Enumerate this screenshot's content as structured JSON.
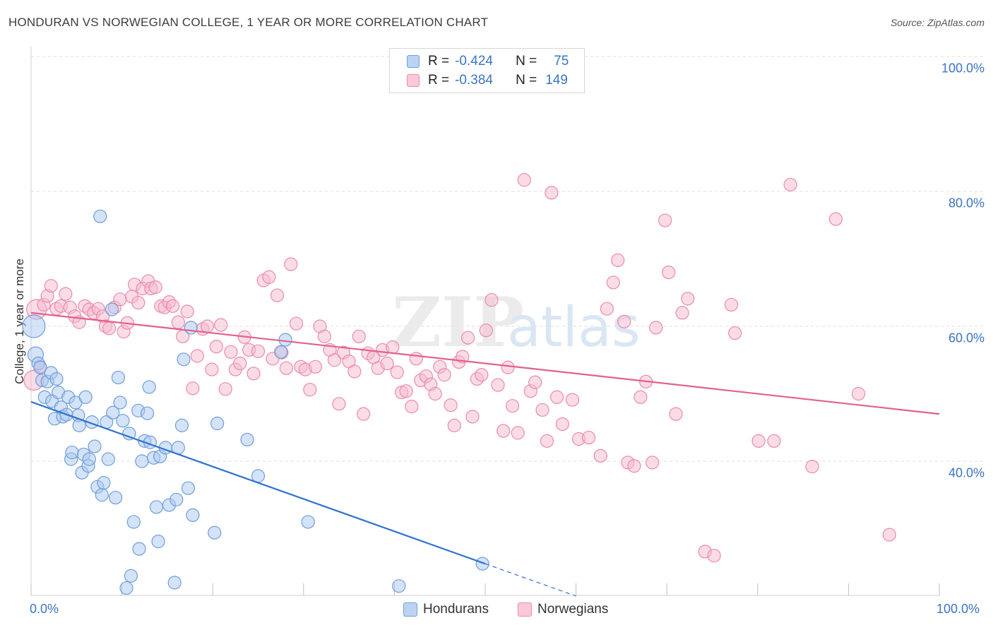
{
  "title": "HONDURAN VS NORWEGIAN COLLEGE, 1 YEAR OR MORE CORRELATION CHART",
  "source": "Source: ZipAtlas.com",
  "watermark": {
    "zip": "ZIP",
    "atlas": "atlas"
  },
  "legend": {
    "hondurans": {
      "r_label": "R =",
      "r_value": "-0.424",
      "n_label": "N =",
      "n_value": "75"
    },
    "norwegians": {
      "r_label": "R =",
      "r_value": "-0.384",
      "n_label": "N =",
      "n_value": "149"
    }
  },
  "bottom_legend": {
    "hondurans": "Hondurans",
    "norwegians": "Norwegians"
  },
  "colors": {
    "honduran_fill": "#aac8f0",
    "honduran_stroke": "#6d9edc",
    "honduran_line": "#2f72d0",
    "norwegian_fill": "#f7b9cd",
    "norwegian_stroke": "#ec8aaa",
    "norwegian_line": "#e2608e",
    "axis_text": "#3b73c4",
    "grid": "#dddddd"
  },
  "chart_data": {
    "type": "scatter",
    "title": "HONDURAN VS NORWEGIAN COLLEGE, 1 YEAR OR MORE CORRELATION CHART",
    "xlabel": "",
    "ylabel": "College, 1 year or more",
    "xlim": [
      0,
      100
    ],
    "ylim": [
      20,
      102
    ],
    "x_tick_labels": [
      "0.0%",
      "100.0%"
    ],
    "y_ticks": [
      40,
      60,
      80,
      100
    ],
    "y_tick_labels": [
      "40.0%",
      "60.0%",
      "80.0%",
      "100.0%"
    ],
    "grid": true,
    "series": [
      {
        "name": "Hondurans",
        "R": -0.424,
        "N": 75,
        "trend": {
          "x": [
            0,
            50
          ],
          "y": [
            48.8,
            24.8
          ],
          "dashed_extension": {
            "x": [
              50,
              60
            ],
            "y": [
              24.8,
              20.0
            ]
          }
        },
        "points": [
          [
            0.3,
            60.0,
            16
          ],
          [
            0.5,
            55.8,
            11
          ],
          [
            0.8,
            54.5,
            9
          ],
          [
            1.0,
            53.9,
            9
          ],
          [
            1.2,
            52.0,
            9
          ],
          [
            1.5,
            49.5,
            9
          ],
          [
            1.8,
            51.8,
            9
          ],
          [
            2.2,
            53.1,
            9
          ],
          [
            2.3,
            48.9,
            9
          ],
          [
            2.6,
            46.3,
            9
          ],
          [
            2.8,
            52.2,
            9
          ],
          [
            3.0,
            50.2,
            9
          ],
          [
            3.3,
            48.0,
            9
          ],
          [
            3.5,
            46.6,
            9
          ],
          [
            3.9,
            46.9,
            9
          ],
          [
            4.1,
            49.5,
            9
          ],
          [
            4.4,
            40.3,
            9
          ],
          [
            4.5,
            41.3,
            9
          ],
          [
            4.9,
            48.7,
            9
          ],
          [
            5.2,
            46.8,
            9
          ],
          [
            5.3,
            45.3,
            9
          ],
          [
            5.6,
            38.3,
            9
          ],
          [
            5.8,
            41.0,
            9
          ],
          [
            6.0,
            49.5,
            9
          ],
          [
            6.3,
            39.3,
            9
          ],
          [
            6.4,
            40.3,
            9
          ],
          [
            6.7,
            45.8,
            9
          ],
          [
            7.0,
            42.2,
            9
          ],
          [
            7.3,
            36.2,
            9
          ],
          [
            7.6,
            76.3,
            9
          ],
          [
            7.8,
            35.0,
            9
          ],
          [
            8.0,
            36.8,
            9
          ],
          [
            8.3,
            45.8,
            9
          ],
          [
            8.5,
            40.3,
            9
          ],
          [
            8.9,
            62.5,
            9
          ],
          [
            9.0,
            47.2,
            9
          ],
          [
            9.3,
            34.6,
            9
          ],
          [
            9.6,
            52.4,
            9
          ],
          [
            9.8,
            48.7,
            9
          ],
          [
            10.1,
            46.0,
            9
          ],
          [
            10.5,
            21.2,
            9
          ],
          [
            10.8,
            44.1,
            9
          ],
          [
            11.0,
            23.0,
            9
          ],
          [
            11.3,
            31.0,
            9
          ],
          [
            11.8,
            47.5,
            9
          ],
          [
            11.9,
            27.0,
            9
          ],
          [
            12.2,
            40.0,
            9
          ],
          [
            12.5,
            43.0,
            9
          ],
          [
            12.8,
            47.1,
            9
          ],
          [
            13.0,
            51.0,
            9
          ],
          [
            13.1,
            42.8,
            9
          ],
          [
            13.5,
            40.5,
            9
          ],
          [
            13.8,
            33.2,
            9
          ],
          [
            14.0,
            28.1,
            9
          ],
          [
            14.2,
            40.7,
            9
          ],
          [
            14.8,
            42.0,
            9
          ],
          [
            15.2,
            33.5,
            9
          ],
          [
            15.8,
            22.0,
            9
          ],
          [
            16.0,
            34.3,
            9
          ],
          [
            16.2,
            42.0,
            9
          ],
          [
            16.6,
            45.3,
            9
          ],
          [
            16.8,
            55.1,
            9
          ],
          [
            17.3,
            36.0,
            9
          ],
          [
            17.6,
            59.8,
            9
          ],
          [
            17.8,
            32.0,
            9
          ],
          [
            20.2,
            29.4,
            9
          ],
          [
            20.5,
            45.6,
            9
          ],
          [
            23.8,
            43.2,
            9
          ],
          [
            25.0,
            37.8,
            9
          ],
          [
            27.5,
            56.2,
            9
          ],
          [
            28.0,
            58.0,
            9
          ],
          [
            30.5,
            31.0,
            9
          ],
          [
            40.5,
            21.5,
            9
          ],
          [
            49.7,
            24.8,
            9
          ]
        ]
      },
      {
        "name": "Norwegians",
        "R": -0.384,
        "N": 149,
        "trend": {
          "x": [
            0,
            100
          ],
          "y": [
            62.0,
            47.0
          ]
        },
        "points": [
          [
            0.3,
            52.0,
            14
          ],
          [
            0.6,
            62.5,
            14
          ],
          [
            1.0,
            54.0,
            9
          ],
          [
            1.4,
            63.2,
            9
          ],
          [
            1.8,
            64.5,
            9
          ],
          [
            2.2,
            66.0,
            9
          ],
          [
            2.8,
            62.6,
            9
          ],
          [
            3.3,
            63.0,
            9
          ],
          [
            3.8,
            64.8,
            9
          ],
          [
            4.3,
            62.8,
            9
          ],
          [
            4.8,
            61.5,
            9
          ],
          [
            5.3,
            60.6,
            9
          ],
          [
            5.9,
            63.0,
            9
          ],
          [
            6.4,
            62.5,
            9
          ],
          [
            6.9,
            62.0,
            9
          ],
          [
            7.4,
            62.6,
            9
          ],
          [
            7.9,
            61.5,
            9
          ],
          [
            8.2,
            60.0,
            9
          ],
          [
            8.6,
            59.7,
            9
          ],
          [
            9.2,
            62.8,
            9
          ],
          [
            9.8,
            64.0,
            9
          ],
          [
            10.2,
            59.2,
            9
          ],
          [
            10.6,
            60.5,
            9
          ],
          [
            11.1,
            64.4,
            9
          ],
          [
            11.4,
            66.2,
            9
          ],
          [
            11.8,
            63.5,
            9
          ],
          [
            12.3,
            65.6,
            9
          ],
          [
            12.9,
            66.7,
            9
          ],
          [
            13.2,
            65.6,
            9
          ],
          [
            13.7,
            65.8,
            9
          ],
          [
            14.3,
            63.0,
            9
          ],
          [
            14.7,
            62.8,
            9
          ],
          [
            15.2,
            63.6,
            9
          ],
          [
            15.6,
            63.0,
            9
          ],
          [
            16.2,
            60.6,
            9
          ],
          [
            16.7,
            58.5,
            9
          ],
          [
            17.2,
            62.2,
            9
          ],
          [
            17.8,
            50.8,
            9
          ],
          [
            18.3,
            55.6,
            9
          ],
          [
            18.9,
            59.6,
            9
          ],
          [
            19.4,
            60.0,
            9
          ],
          [
            19.9,
            53.6,
            9
          ],
          [
            20.4,
            57.0,
            9
          ],
          [
            20.9,
            60.2,
            9
          ],
          [
            21.4,
            50.7,
            9
          ],
          [
            22.0,
            56.2,
            9
          ],
          [
            22.5,
            53.6,
            9
          ],
          [
            23.0,
            54.5,
            9
          ],
          [
            23.5,
            58.4,
            9
          ],
          [
            24.0,
            56.5,
            9
          ],
          [
            24.5,
            53.0,
            9
          ],
          [
            25.0,
            56.3,
            9
          ],
          [
            25.6,
            66.8,
            9
          ],
          [
            26.2,
            67.3,
            9
          ],
          [
            26.6,
            55.2,
            9
          ],
          [
            27.1,
            64.6,
            9
          ],
          [
            27.6,
            56.1,
            9
          ],
          [
            28.1,
            53.8,
            9
          ],
          [
            28.6,
            69.2,
            9
          ],
          [
            29.2,
            60.4,
            9
          ],
          [
            29.7,
            54.0,
            9
          ],
          [
            30.2,
            53.6,
            9
          ],
          [
            30.7,
            50.6,
            9
          ],
          [
            31.3,
            54.0,
            9
          ],
          [
            31.8,
            60.0,
            9
          ],
          [
            32.3,
            58.5,
            9
          ],
          [
            32.9,
            56.5,
            9
          ],
          [
            33.4,
            55.0,
            9
          ],
          [
            33.9,
            48.5,
            9
          ],
          [
            34.4,
            56.1,
            9
          ],
          [
            35.0,
            54.8,
            9
          ],
          [
            35.6,
            53.3,
            9
          ],
          [
            36.1,
            58.5,
            9
          ],
          [
            36.6,
            47.0,
            9
          ],
          [
            37.1,
            56.0,
            9
          ],
          [
            37.7,
            55.4,
            9
          ],
          [
            38.2,
            53.8,
            9
          ],
          [
            38.7,
            56.5,
            9
          ],
          [
            39.2,
            54.5,
            9
          ],
          [
            39.8,
            56.9,
            9
          ],
          [
            40.3,
            53.2,
            9
          ],
          [
            40.8,
            50.2,
            9
          ],
          [
            41.3,
            50.4,
            9
          ],
          [
            41.9,
            48.1,
            9
          ],
          [
            42.4,
            55.2,
            9
          ],
          [
            42.9,
            52.0,
            9
          ],
          [
            43.5,
            52.6,
            9
          ],
          [
            44.0,
            51.4,
            9
          ],
          [
            44.5,
            50.0,
            9
          ],
          [
            45.0,
            54.0,
            9
          ],
          [
            45.5,
            52.8,
            9
          ],
          [
            46.2,
            48.3,
            9
          ],
          [
            46.6,
            45.3,
            9
          ],
          [
            47.1,
            54.7,
            9
          ],
          [
            47.5,
            55.5,
            9
          ],
          [
            48.1,
            58.3,
            9
          ],
          [
            48.6,
            46.6,
            9
          ],
          [
            49.1,
            52.2,
            9
          ],
          [
            49.6,
            52.8,
            9
          ],
          [
            50.1,
            59.4,
            9
          ],
          [
            50.7,
            63.9,
            9
          ],
          [
            51.4,
            51.3,
            9
          ],
          [
            52.0,
            44.5,
            9
          ],
          [
            52.5,
            53.9,
            9
          ],
          [
            53.0,
            48.2,
            9
          ],
          [
            53.6,
            44.2,
            9
          ],
          [
            54.3,
            81.7,
            9
          ],
          [
            55.0,
            50.4,
            9
          ],
          [
            55.5,
            51.7,
            9
          ],
          [
            56.3,
            47.6,
            9
          ],
          [
            56.8,
            43.0,
            9
          ],
          [
            57.3,
            79.8,
            9
          ],
          [
            57.9,
            49.5,
            9
          ],
          [
            58.5,
            45.5,
            9
          ],
          [
            59.6,
            49.1,
            9
          ],
          [
            60.3,
            43.3,
            9
          ],
          [
            61.4,
            43.5,
            9
          ],
          [
            62.7,
            40.8,
            9
          ],
          [
            63.4,
            62.6,
            9
          ],
          [
            64.1,
            66.5,
            9
          ],
          [
            64.6,
            69.8,
            9
          ],
          [
            65.3,
            60.7,
            9
          ],
          [
            65.7,
            39.8,
            9
          ],
          [
            66.4,
            39.3,
            9
          ],
          [
            67.1,
            49.5,
            9
          ],
          [
            67.7,
            51.8,
            9
          ],
          [
            68.4,
            39.8,
            9
          ],
          [
            68.8,
            59.8,
            9
          ],
          [
            69.8,
            75.7,
            9
          ],
          [
            70.2,
            68.0,
            9
          ],
          [
            71.0,
            47.0,
            9
          ],
          [
            71.7,
            62.0,
            9
          ],
          [
            72.3,
            64.1,
            9
          ],
          [
            74.2,
            26.6,
            9
          ],
          [
            75.2,
            26.0,
            9
          ],
          [
            77.1,
            63.2,
            9
          ],
          [
            77.5,
            59.0,
            9
          ],
          [
            80.1,
            43.0,
            9
          ],
          [
            81.8,
            43.0,
            9
          ],
          [
            83.6,
            81.0,
            9
          ],
          [
            86.0,
            39.2,
            9
          ],
          [
            88.6,
            75.9,
            9
          ],
          [
            91.1,
            50.0,
            9
          ],
          [
            94.5,
            29.1,
            9
          ]
        ]
      }
    ]
  }
}
